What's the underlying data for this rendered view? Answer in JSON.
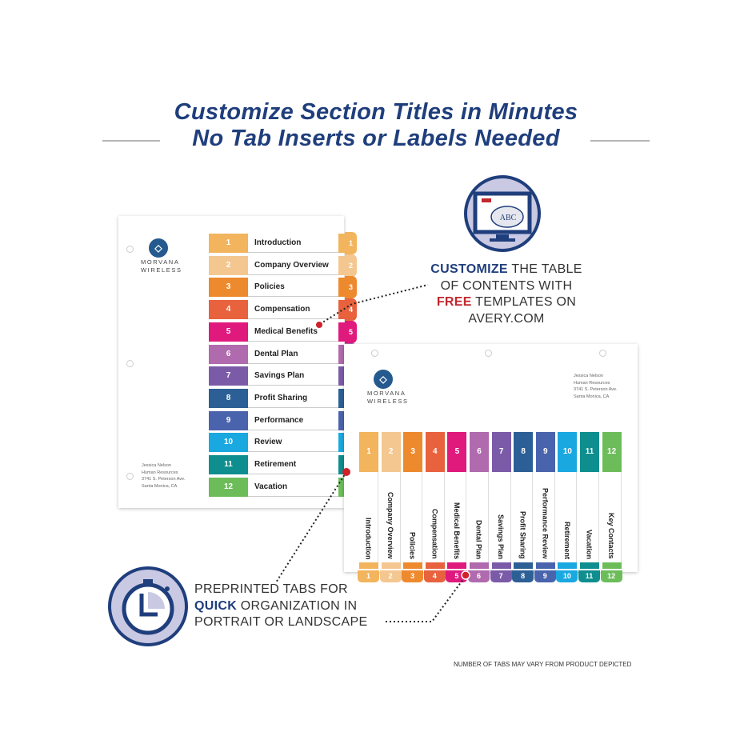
{
  "headline": {
    "line1": "Customize Section Titles in Minutes",
    "line2": "No Tab Inserts or Labels Needed"
  },
  "brand": {
    "name_line1": "MORVANA",
    "name_line2": "WIRELESS"
  },
  "address": [
    "Jessica Nelson",
    "Human Resources",
    "3741 S. Peterson Ave.",
    "Santa Monica, CA"
  ],
  "portrait_divider": {
    "sections": [
      {
        "num": "1",
        "label": "Introduction",
        "color": "#f2b45c"
      },
      {
        "num": "2",
        "label": "Company Overview",
        "color": "#f4c790"
      },
      {
        "num": "3",
        "label": "Policies",
        "color": "#ee8a2e"
      },
      {
        "num": "4",
        "label": "Compensation",
        "color": "#e8623e"
      },
      {
        "num": "5",
        "label": "Medical Benefits",
        "color": "#e0197d"
      },
      {
        "num": "6",
        "label": "Dental Plan",
        "color": "#b06aae"
      },
      {
        "num": "7",
        "label": "Savings Plan",
        "color": "#7b5ba8"
      },
      {
        "num": "8",
        "label": "Profit Sharing",
        "color": "#2c5f95"
      },
      {
        "num": "9",
        "label": "Performance",
        "color": "#4a63ad"
      },
      {
        "num": "10",
        "label": "Review",
        "color": "#1aa8e0"
      },
      {
        "num": "11",
        "label": "Retirement",
        "color": "#0e8e8e"
      },
      {
        "num": "12",
        "label": "Vacation",
        "color": "#6cbd5a"
      }
    ]
  },
  "landscape_divider": {
    "sections": [
      {
        "num": "1",
        "label": "Introduction",
        "color": "#f2b45c"
      },
      {
        "num": "2",
        "label": "Company Overview",
        "color": "#f4c790"
      },
      {
        "num": "3",
        "label": "Policies",
        "color": "#ee8a2e"
      },
      {
        "num": "4",
        "label": "Compensation",
        "color": "#e8623e"
      },
      {
        "num": "5",
        "label": "Medical Benefits",
        "color": "#e0197d"
      },
      {
        "num": "6",
        "label": "Dental Plan",
        "color": "#b06aae"
      },
      {
        "num": "7",
        "label": "Savings Plan",
        "color": "#7b5ba8"
      },
      {
        "num": "8",
        "label": "Profit Sharing",
        "color": "#2c5f95"
      },
      {
        "num": "9",
        "label": "Performance Review",
        "color": "#4a63ad"
      },
      {
        "num": "10",
        "label": "Retirement",
        "color": "#1aa8e0"
      },
      {
        "num": "11",
        "label": "Vacation",
        "color": "#0e8e8e"
      },
      {
        "num": "12",
        "label": "Key Contacts",
        "color": "#6cbd5a"
      }
    ]
  },
  "customize_callout": {
    "icon": "computer-monitor-icon",
    "bold": "CUSTOMIZE",
    "line1_rest": " THE TABLE",
    "line2": "OF CONTENTS WITH",
    "red": "FREE",
    "line3_rest": " TEMPLATES ON",
    "line4": "AVERY.COM",
    "monitor_text": "ABC"
  },
  "quick_callout": {
    "icon": "stopwatch-icon",
    "line1": "PREPRINTED TABS FOR",
    "bold": "QUICK",
    "line2_rest": " ORGANIZATION IN",
    "line3": "PORTRAIT OR LANDSCAPE"
  },
  "footnote": "NUMBER OF TABS MAY VARY FROM PRODUCT DEPICTED",
  "colors": {
    "navy": "#1f3e7c",
    "red": "#c1272d",
    "icon_fill": "#c9c9e3"
  }
}
